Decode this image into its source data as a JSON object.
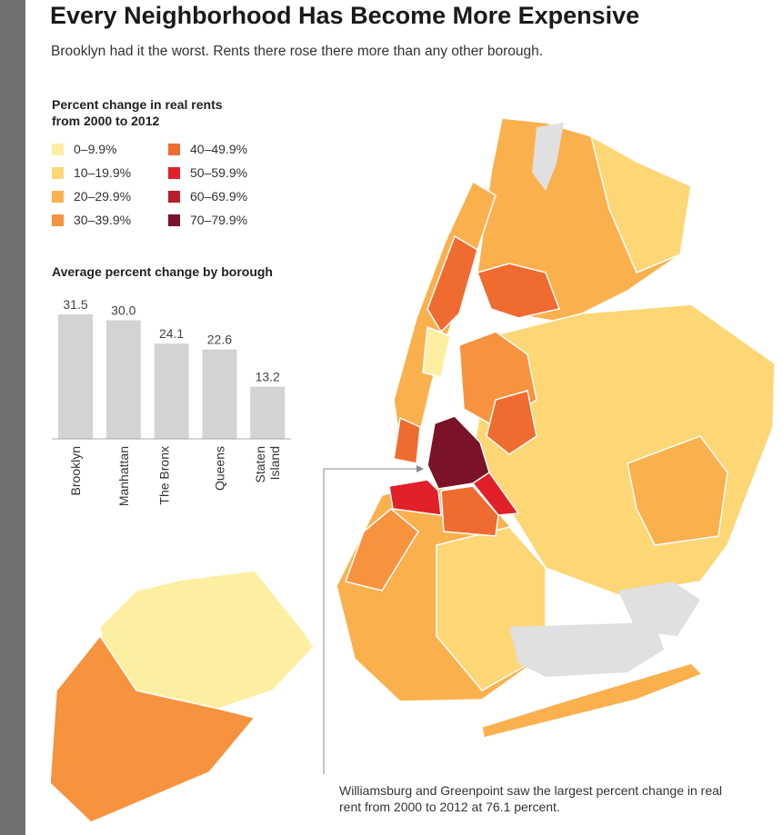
{
  "title": "Every Neighborhood Has Become More Expensive",
  "subtitle": "Brooklyn had it the worst. Rents there rose there more than any other borough.",
  "legend": {
    "title": "Percent change in real rents from 2000 to 2012",
    "items": [
      {
        "label": "0–9.9%",
        "color": "#fdefa2"
      },
      {
        "label": "40–49.9%",
        "color": "#ef6b30"
      },
      {
        "label": "10–19.9%",
        "color": "#fdd776"
      },
      {
        "label": "50–59.9%",
        "color": "#e2202a"
      },
      {
        "label": "20–29.9%",
        "color": "#fbb04e"
      },
      {
        "label": "60–69.9%",
        "color": "#b81f2b"
      },
      {
        "label": "30–39.9%",
        "color": "#f7923e"
      },
      {
        "label": "70–79.9%",
        "color": "#7a1228"
      }
    ]
  },
  "chart_data": {
    "type": "bar",
    "title": "Average percent change by borough",
    "categories": [
      "Brooklyn",
      "Manhattan",
      "The Bronx",
      "Queens",
      "Staten Island"
    ],
    "values": [
      31.5,
      30.0,
      24.1,
      22.6,
      13.2
    ],
    "value_labels": [
      "31.5",
      "30.0",
      "24.1",
      "22.6",
      "13.2"
    ],
    "ylim": [
      0,
      35
    ],
    "bar_color": "#d3d3d4"
  },
  "annotation": "Williamsburg and Greenpoint saw the largest percent change in real rent from 2000 to 2012 at 76.1 percent."
}
